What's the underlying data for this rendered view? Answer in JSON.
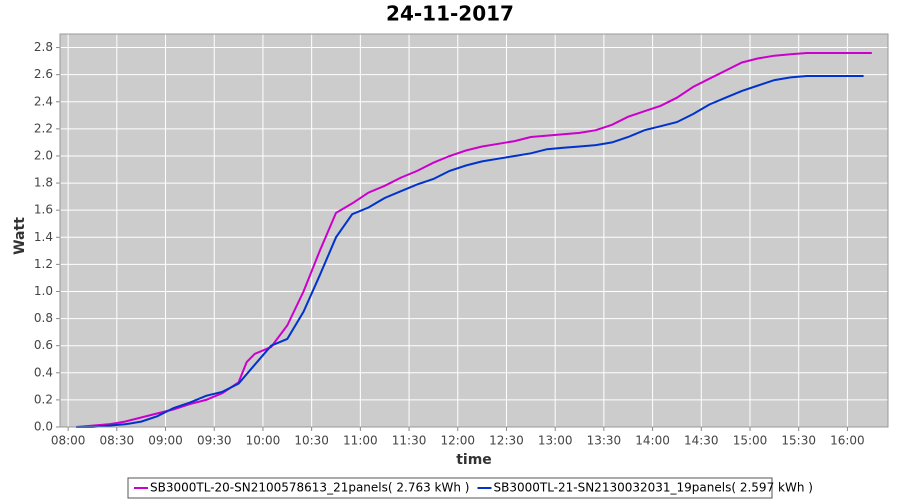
{
  "chart_data": {
    "type": "line",
    "title": "24-11-2017",
    "x_label": "time",
    "y_label": "Watt",
    "xlim": [
      "07:55",
      "16:25"
    ],
    "xticks": [
      "08:00",
      "08:30",
      "09:00",
      "09:30",
      "10:00",
      "10:30",
      "11:00",
      "11:30",
      "12:00",
      "12:30",
      "13:00",
      "13:30",
      "14:00",
      "14:30",
      "15:00",
      "15:30",
      "16:00"
    ],
    "ylim": [
      0,
      2.9
    ],
    "yticks": [
      {
        "value": 0,
        "label": "0.0"
      },
      0.2,
      0.4,
      0.6,
      0.8,
      {
        "value": 1,
        "label": "1.0"
      },
      1.2,
      1.4,
      1.6,
      1.8,
      {
        "value": 2,
        "label": "2.0"
      },
      2.2,
      2.4,
      2.6,
      2.8
    ],
    "grid": true,
    "legend": "bottom",
    "series": [
      {
        "name": "SB3000TL-20-SN2100578613_21panels( 2.763 kWh )",
        "color": "#cc00cc",
        "x": [
          "08:05",
          "08:15",
          "08:25",
          "08:35",
          "08:45",
          "08:55",
          "09:05",
          "09:15",
          "09:25",
          "09:35",
          "09:45",
          "09:50",
          "09:55",
          "10:05",
          "10:15",
          "10:25",
          "10:35",
          "10:45",
          "10:55",
          "11:05",
          "11:15",
          "11:25",
          "11:35",
          "11:45",
          "11:55",
          "12:05",
          "12:15",
          "12:25",
          "12:35",
          "12:45",
          "12:55",
          "13:05",
          "13:15",
          "13:25",
          "13:35",
          "13:45",
          "13:55",
          "14:05",
          "14:15",
          "14:25",
          "14:35",
          "14:45",
          "14:55",
          "15:05",
          "15:15",
          "15:25",
          "15:35",
          "15:45",
          "15:55",
          "16:05",
          "16:15"
        ],
        "values": [
          0.0,
          0.01,
          0.02,
          0.04,
          0.07,
          0.1,
          0.13,
          0.17,
          0.2,
          0.25,
          0.33,
          0.48,
          0.54,
          0.59,
          0.75,
          1.0,
          1.3,
          1.58,
          1.65,
          1.73,
          1.78,
          1.84,
          1.89,
          1.95,
          2.0,
          2.04,
          2.07,
          2.09,
          2.11,
          2.14,
          2.15,
          2.16,
          2.17,
          2.19,
          2.23,
          2.29,
          2.33,
          2.37,
          2.43,
          2.51,
          2.57,
          2.63,
          2.69,
          2.72,
          2.74,
          2.75,
          2.76,
          2.76,
          2.76,
          2.76,
          2.76
        ]
      },
      {
        "name": "SB3000TL-21-SN2130032031_19panels( 2.597 kWh )",
        "color": "#0033cc",
        "x": [
          "08:05",
          "08:15",
          "08:25",
          "08:35",
          "08:45",
          "08:55",
          "09:05",
          "09:15",
          "09:25",
          "09:35",
          "09:45",
          "09:55",
          "10:05",
          "10:15",
          "10:25",
          "10:35",
          "10:45",
          "10:55",
          "11:05",
          "11:15",
          "11:25",
          "11:35",
          "11:45",
          "11:55",
          "12:05",
          "12:15",
          "12:25",
          "12:35",
          "12:45",
          "12:55",
          "13:05",
          "13:15",
          "13:25",
          "13:35",
          "13:45",
          "13:55",
          "14:05",
          "14:15",
          "14:25",
          "14:35",
          "14:45",
          "14:55",
          "15:05",
          "15:15",
          "15:25",
          "15:35",
          "15:45",
          "15:55",
          "16:05",
          "16:10"
        ],
        "values": [
          0.0,
          0.0,
          0.01,
          0.02,
          0.04,
          0.08,
          0.14,
          0.18,
          0.23,
          0.26,
          0.32,
          0.46,
          0.6,
          0.65,
          0.85,
          1.12,
          1.4,
          1.57,
          1.62,
          1.69,
          1.74,
          1.79,
          1.83,
          1.89,
          1.93,
          1.96,
          1.98,
          2.0,
          2.02,
          2.05,
          2.06,
          2.07,
          2.08,
          2.1,
          2.14,
          2.19,
          2.22,
          2.25,
          2.31,
          2.38,
          2.43,
          2.48,
          2.52,
          2.56,
          2.58,
          2.59,
          2.59,
          2.59,
          2.59,
          2.59
        ]
      }
    ]
  }
}
